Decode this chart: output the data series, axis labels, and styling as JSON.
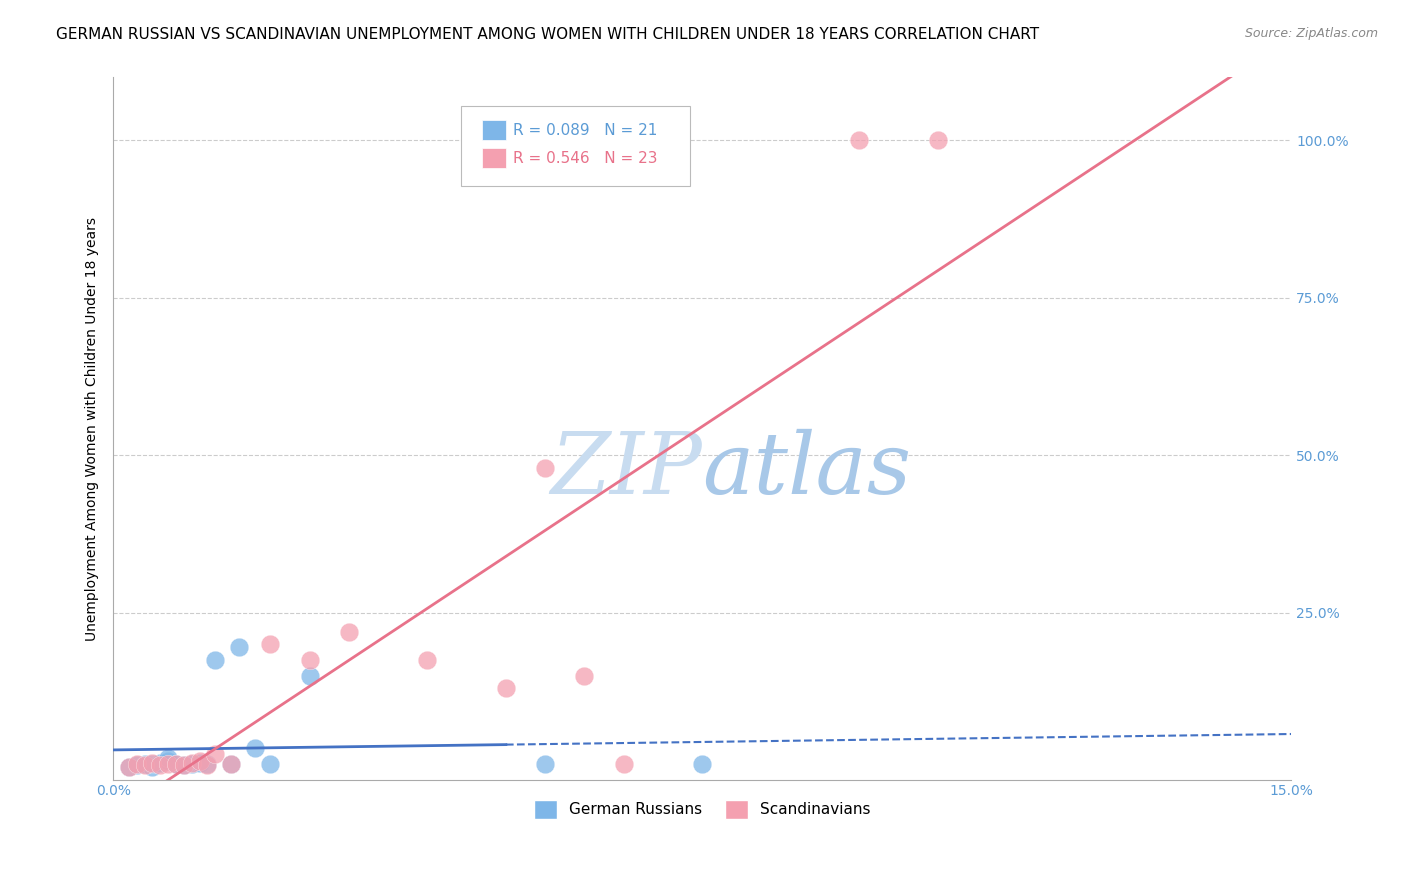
{
  "title": "GERMAN RUSSIAN VS SCANDINAVIAN UNEMPLOYMENT AMONG WOMEN WITH CHILDREN UNDER 18 YEARS CORRELATION CHART",
  "source": "Source: ZipAtlas.com",
  "ylabel": "Unemployment Among Women with Children Under 18 years",
  "x_min": 0.0,
  "x_max": 0.15,
  "y_min": -0.015,
  "y_max": 1.1,
  "legend_label_1": "German Russians",
  "legend_label_2": "Scandinavians",
  "r1": 0.089,
  "n1": 21,
  "r2": 0.546,
  "n2": 23,
  "color_blue": "#7EB6E8",
  "color_pink": "#F4A0B0",
  "color_blue_line": "#4472C4",
  "color_pink_line": "#E8728A",
  "watermark_color": "#DCE9F5",
  "background_color": "#FFFFFF",
  "title_fontsize": 11,
  "source_fontsize": 9,
  "axis_label_fontsize": 10,
  "legend_fontsize": 11,
  "german_russian_x": [
    0.002,
    0.003,
    0.004,
    0.005,
    0.005,
    0.006,
    0.007,
    0.007,
    0.008,
    0.009,
    0.01,
    0.011,
    0.012,
    0.013,
    0.015,
    0.016,
    0.018,
    0.02,
    0.025,
    0.055,
    0.075
  ],
  "german_russian_y": [
    0.005,
    0.008,
    0.01,
    0.005,
    0.01,
    0.012,
    0.015,
    0.02,
    0.01,
    0.008,
    0.01,
    0.012,
    0.01,
    0.175,
    0.01,
    0.195,
    0.035,
    0.01,
    0.15,
    0.01,
    0.01
  ],
  "scandinavian_x": [
    0.002,
    0.003,
    0.004,
    0.005,
    0.006,
    0.007,
    0.008,
    0.009,
    0.01,
    0.011,
    0.012,
    0.013,
    0.015,
    0.02,
    0.025,
    0.03,
    0.04,
    0.05,
    0.055,
    0.06,
    0.065,
    0.095,
    0.105
  ],
  "scandinavian_y": [
    0.005,
    0.01,
    0.008,
    0.012,
    0.008,
    0.01,
    0.01,
    0.008,
    0.012,
    0.015,
    0.008,
    0.025,
    0.01,
    0.2,
    0.175,
    0.22,
    0.175,
    0.13,
    0.48,
    0.15,
    0.01,
    1.0,
    1.0
  ]
}
